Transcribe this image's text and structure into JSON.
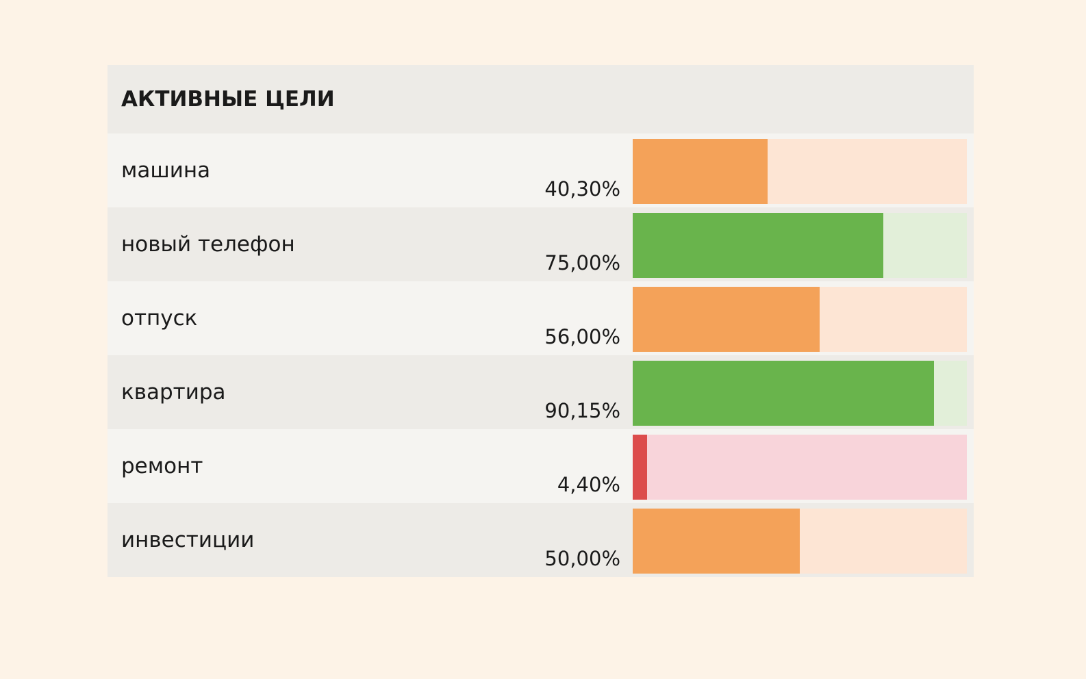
{
  "header": {
    "title": "АКТИВНЫЕ ЦЕЛИ"
  },
  "goals": [
    {
      "name": "машина",
      "value": 40.3,
      "value_label": "40,30%",
      "color": "#f4a259",
      "track_color": "#fde5d4"
    },
    {
      "name": "новый телефон",
      "value": 75,
      "value_label": "75,00%",
      "color": "#69b44c",
      "track_color": "#e2efd9"
    },
    {
      "name": "отпуск",
      "value": 56,
      "value_label": "56,00%",
      "color": "#f4a259",
      "track_color": "#fde5d4"
    },
    {
      "name": "квартира",
      "value": 90.15,
      "value_label": "90,15%",
      "color": "#69b44c",
      "track_color": "#e2efd9"
    },
    {
      "name": "ремонт",
      "value": 4.4,
      "value_label": "4,40%",
      "color": "#dc4c4c",
      "track_color": "#f8d4da"
    },
    {
      "name": "инвестиции",
      "value": 50,
      "value_label": "50,00%",
      "color": "#f4a259",
      "track_color": "#fde5d4"
    }
  ]
}
